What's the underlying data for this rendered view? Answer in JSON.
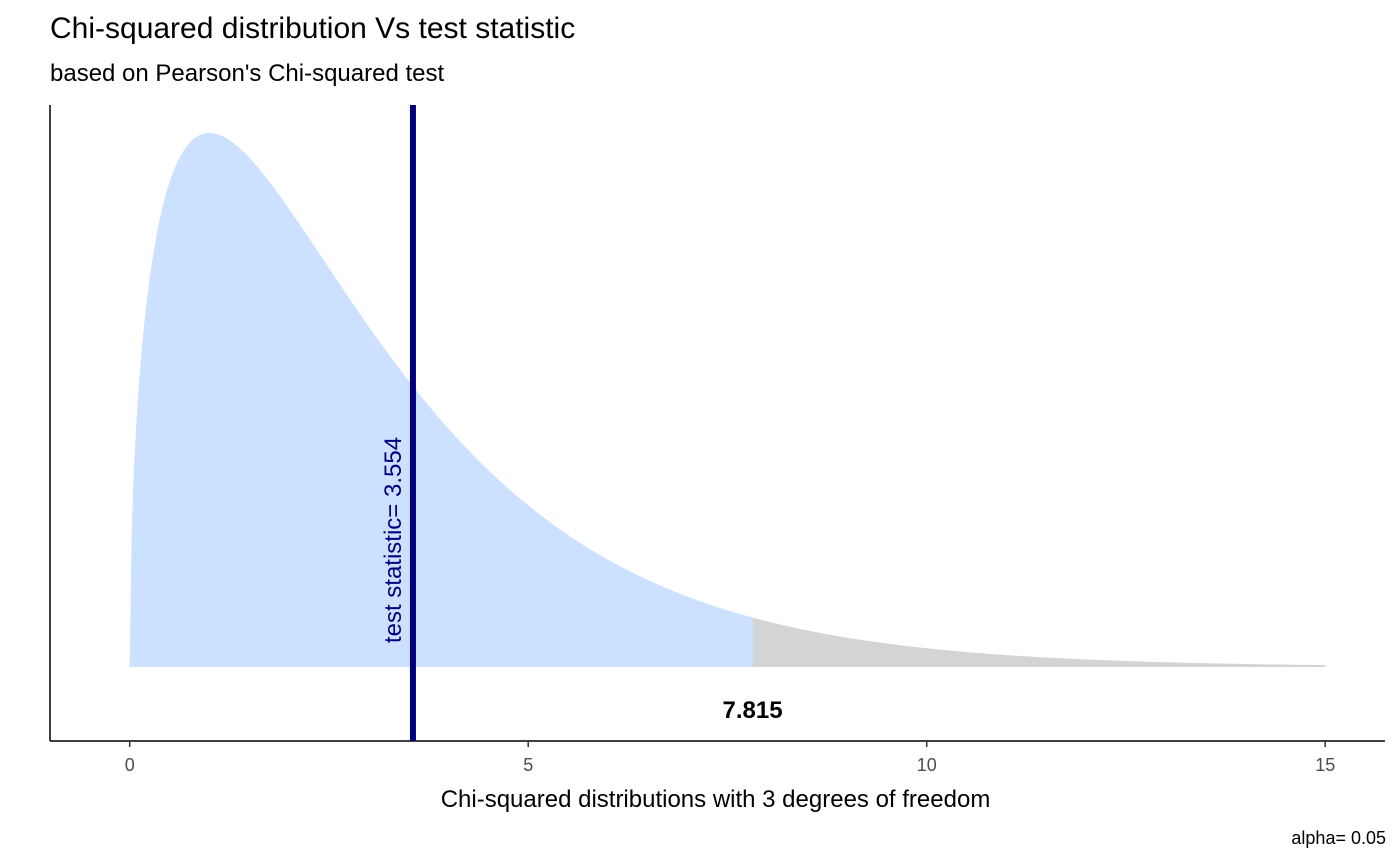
{
  "chart_data": {
    "type": "area",
    "title": "Chi-squared distribution Vs test statistic",
    "subtitle": "based on Pearson's Chi-squared test",
    "xlabel": "Chi-squared distributions with 3 degrees of freedom",
    "ylabel": "",
    "caption": "alpha= 0.05",
    "degrees_of_freedom": 3,
    "alpha": 0.05,
    "xlim": [
      -1,
      15.75
    ],
    "x_range": [
      0,
      15
    ],
    "x_ticks": [
      0,
      5,
      10,
      15
    ],
    "x_tick_labels": [
      "0",
      "5",
      "10",
      "15"
    ],
    "critical_value": 7.815,
    "critical_value_label": "7.815",
    "test_statistic": 3.554,
    "test_statistic_label": "test statistic= 3.554",
    "grid": false,
    "legend": "none",
    "colors": {
      "acceptance_region": "#cce1ff",
      "rejection_region": "#d4d4d4",
      "test_statistic_line": "#00007f",
      "axis": "#000000"
    }
  }
}
